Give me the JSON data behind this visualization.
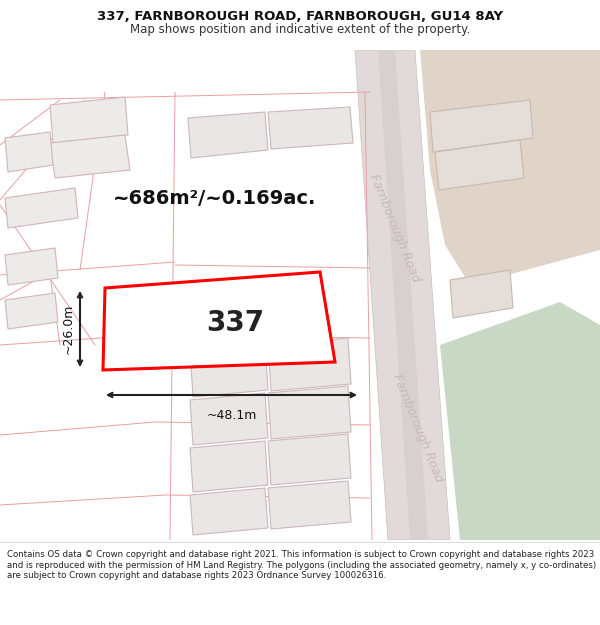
{
  "title_line1": "337, FARNBOROUGH ROAD, FARNBOROUGH, GU14 8AY",
  "title_line2": "Map shows position and indicative extent of the property.",
  "footer_text": "Contains OS data © Crown copyright and database right 2021. This information is subject to Crown copyright and database rights 2023 and is reproduced with the permission of HM Land Registry. The polygons (including the associated geometry, namely x, y co-ordinates) are subject to Crown copyright and database rights 2023 Ordnance Survey 100026316.",
  "area_label": "~686m²/~0.169ac.",
  "property_label": "337",
  "dim_width_label": "~48.1m",
  "dim_height_label": "~26.0m",
  "road_label": "Farnborough Road",
  "bg_color": "#ffffff",
  "map_bg": "#f7f3f3",
  "road_fill": "#e2dada",
  "road_center": "#d8d0ce",
  "property_outline_color": "#ff0000",
  "property_fill_color": "#ffffff",
  "building_fill": "#e8e4e4",
  "building_outline": "#d4b8b8",
  "road_line_color": "#e8a0a0",
  "dim_line_color": "#222222",
  "road_text_color": "#c8b8b8",
  "green_color": "#c8d8c4",
  "tan_color": "#e0d4c8",
  "title_fontsize": 9.5,
  "subtitle_fontsize": 8.5,
  "area_fontsize": 14,
  "label_fontsize": 20,
  "dim_fontsize": 9,
  "road_label_fontsize": 9
}
